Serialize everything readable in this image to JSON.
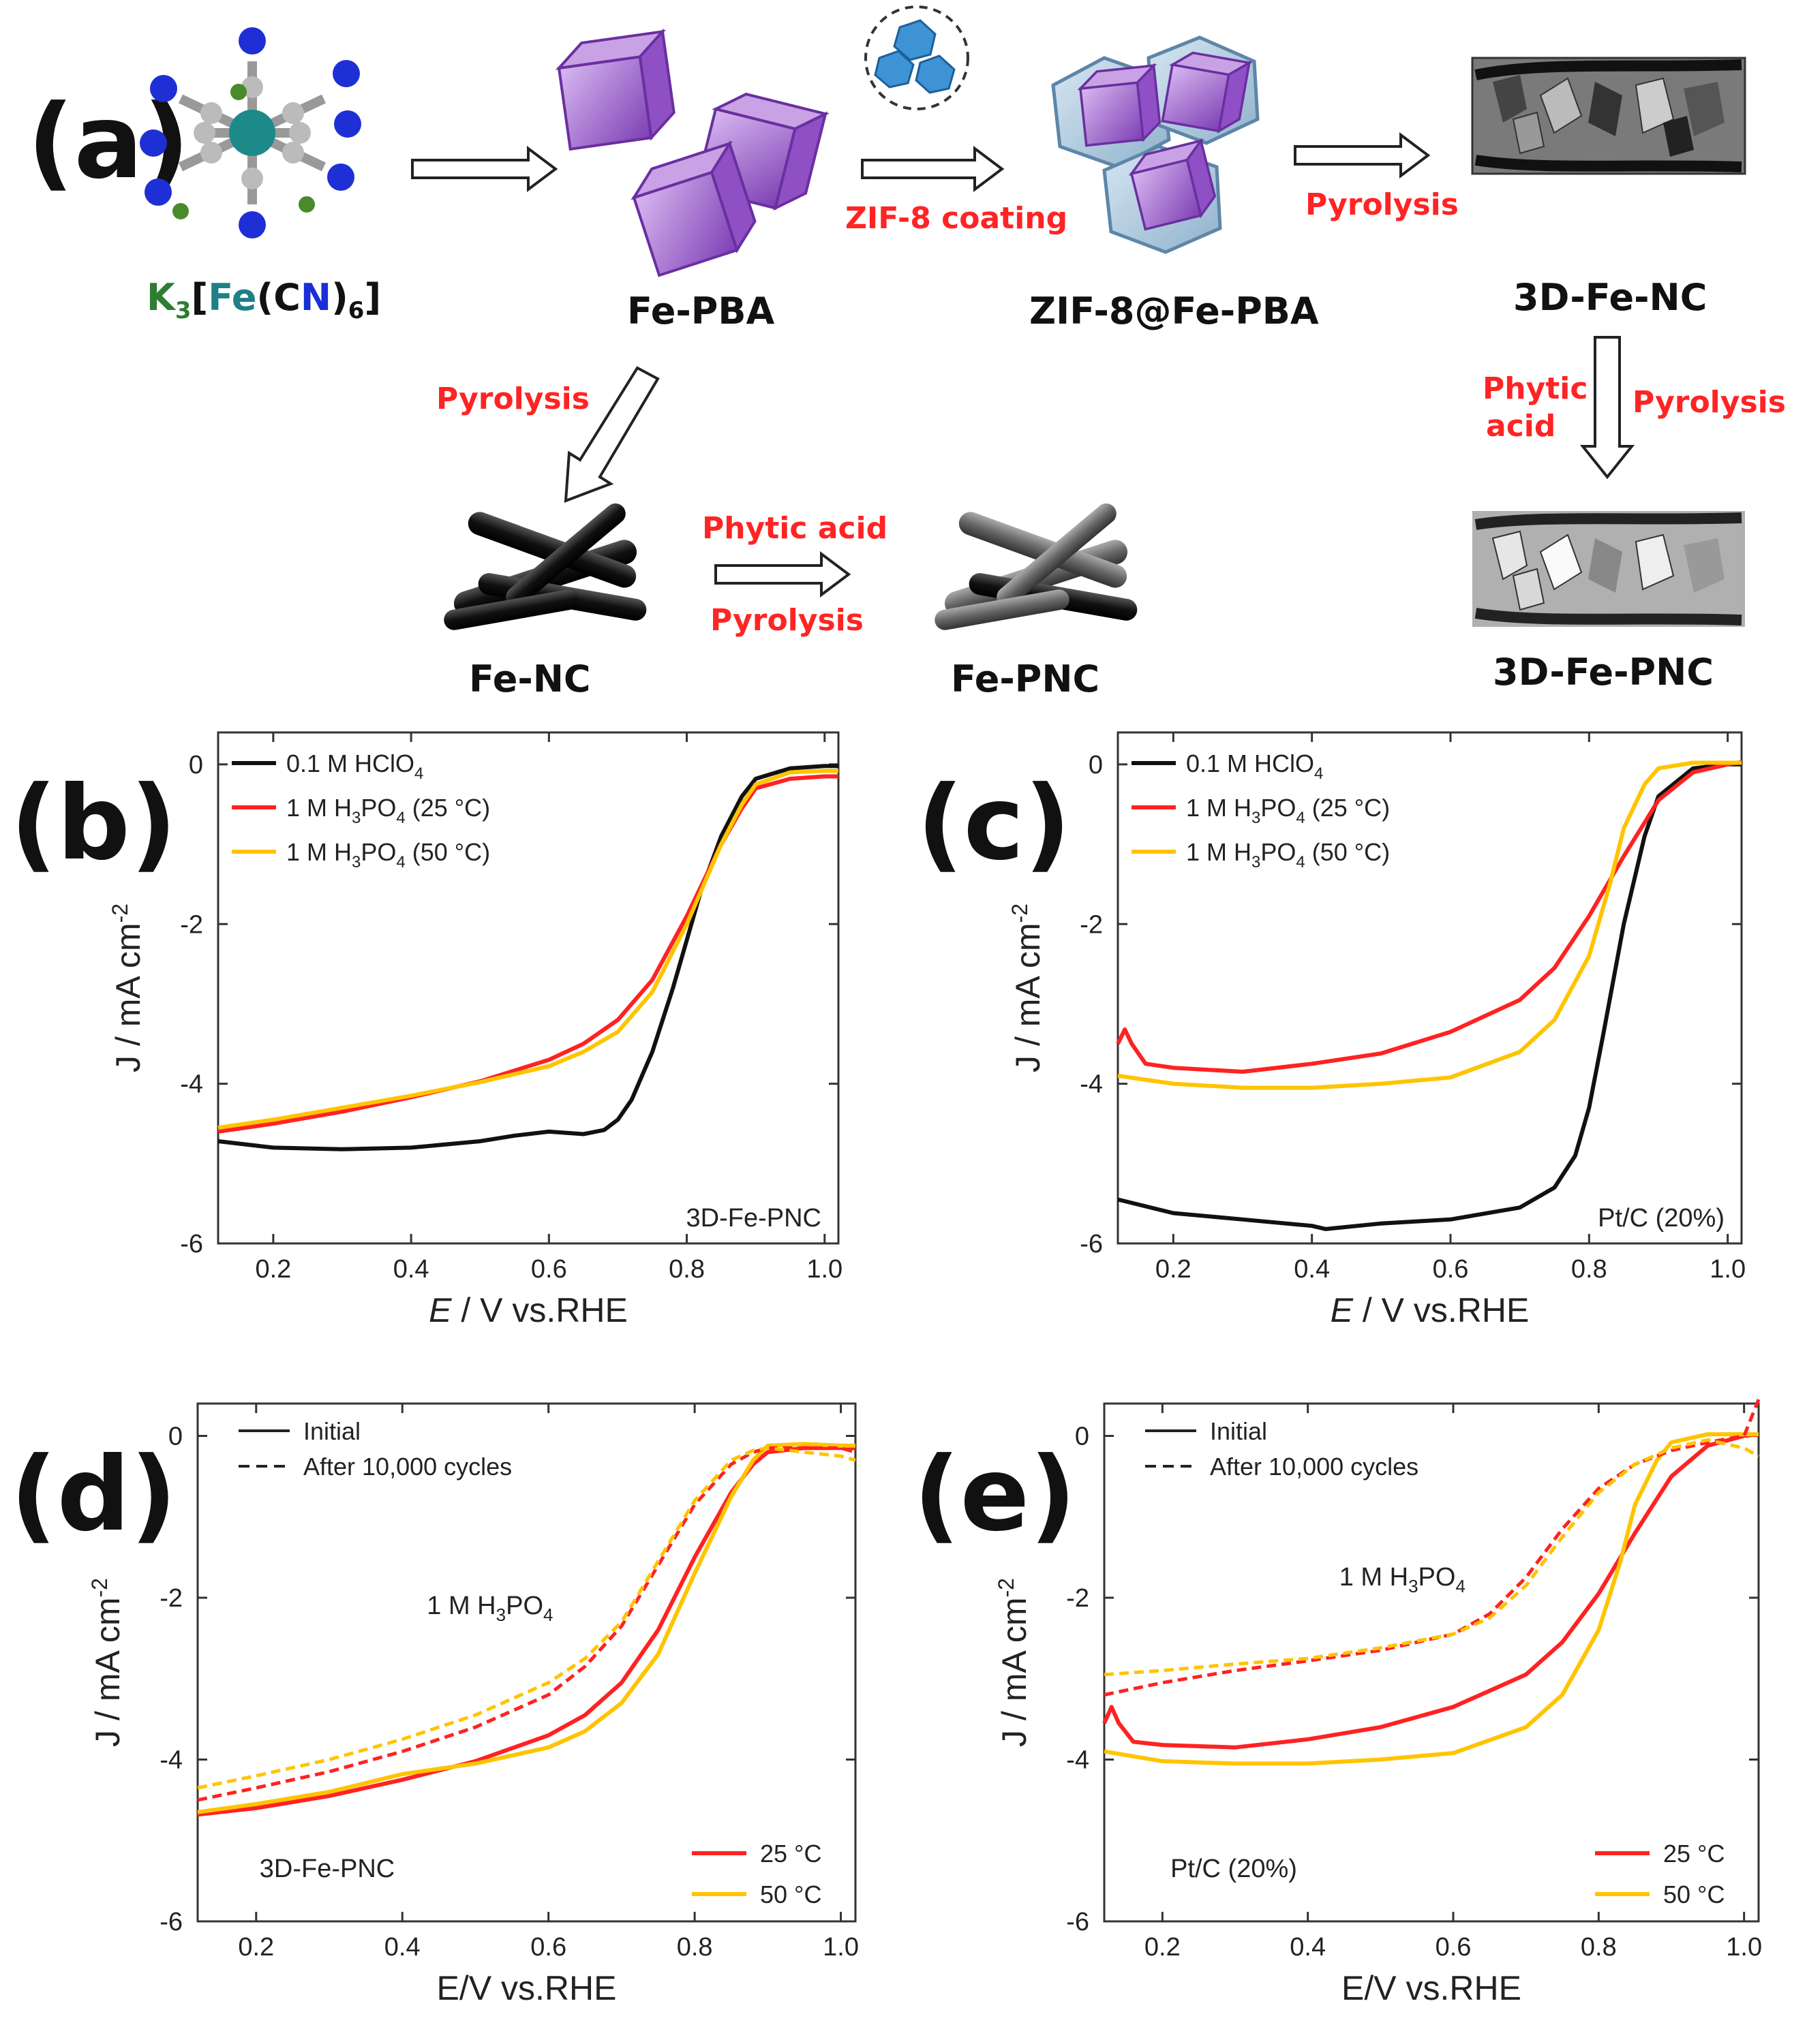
{
  "scheme": {
    "letter": "(a)",
    "nodes": {
      "precursor": {
        "prefix": "K",
        "sub": "3",
        "bracket": "[",
        "fe": "Fe",
        "paren_open": "(",
        "c": "C",
        "n": "N",
        "paren_close": ")",
        "sub2": "6",
        "bracket_close": "]"
      },
      "fe_pba": "Fe-PBA",
      "zif_pba": "ZIF-8@Fe-PBA",
      "fe3d_nc": "3D-Fe-NC",
      "fe3d_pnc": "3D-Fe-PNC",
      "fe_nc": "Fe-NC",
      "fe_pnc": "Fe-PNC"
    },
    "steps": {
      "zif_coating": "ZIF-8 coating",
      "pyrolysis_top": "Pyrolysis",
      "pyrolysis_diag": "Pyrolysis",
      "phytic_right_1": "Phytic",
      "phytic_right_2": "acid",
      "pyrolysis_right": "Pyrolysis",
      "phytic_bottom": "Phytic acid",
      "pyrolysis_bottom": "Pyrolysis"
    },
    "colors": {
      "step_label": "#ff2424",
      "k": "#2e7d32",
      "fe": "#1e7f86",
      "n": "#1a2fd6"
    }
  },
  "chart_data": [
    {
      "id": "b",
      "letter": "(b)",
      "type": "line",
      "xlabel_em": "E",
      "xlabel_rest": " / V vs.RHE",
      "ylabel": "J / mA cm",
      "ylabel_sup": "-2",
      "xlim": [
        0.12,
        1.02
      ],
      "ylim": [
        -6,
        0.4
      ],
      "xticks": [
        "0.2",
        "0.4",
        "0.6",
        "0.8",
        "1.0"
      ],
      "yticks": [
        "0",
        "-2",
        "-4",
        "-6"
      ],
      "note": "3D-Fe-PNC",
      "legend": [
        {
          "text": "0.1 M HClO",
          "sub": "4",
          "tail": ""
        },
        {
          "text": "1 M H",
          "sub": "3",
          "mid": "PO",
          "sub2": "4",
          "tail": " (25 °C)"
        },
        {
          "text": "1 M H",
          "sub": "3",
          "mid": "PO",
          "sub2": "4",
          "tail": " (50 °C)"
        }
      ],
      "series": [
        {
          "name": "0.1 M HClO4",
          "color": "#111111",
          "dash": false,
          "x": [
            0.12,
            0.2,
            0.3,
            0.4,
            0.5,
            0.55,
            0.6,
            0.65,
            0.68,
            0.7,
            0.72,
            0.75,
            0.78,
            0.8,
            0.82,
            0.85,
            0.88,
            0.9,
            0.95,
            1.0,
            1.02
          ],
          "y": [
            -4.72,
            -4.8,
            -4.82,
            -4.8,
            -4.72,
            -4.65,
            -4.6,
            -4.63,
            -4.58,
            -4.45,
            -4.2,
            -3.6,
            -2.8,
            -2.2,
            -1.6,
            -0.9,
            -0.4,
            -0.18,
            -0.05,
            -0.02,
            -0.02
          ]
        },
        {
          "name": "1 M H3PO4 (25 °C)",
          "color": "#ff2222",
          "dash": false,
          "x": [
            0.12,
            0.2,
            0.3,
            0.4,
            0.5,
            0.6,
            0.65,
            0.7,
            0.75,
            0.8,
            0.85,
            0.88,
            0.9,
            0.95,
            1.0,
            1.02
          ],
          "y": [
            -4.6,
            -4.5,
            -4.35,
            -4.17,
            -3.97,
            -3.7,
            -3.5,
            -3.2,
            -2.7,
            -1.9,
            -1.0,
            -0.55,
            -0.3,
            -0.18,
            -0.15,
            -0.15
          ]
        },
        {
          "name": "1 M H3PO4 (50 °C)",
          "color": "#ffc400",
          "dash": false,
          "x": [
            0.12,
            0.2,
            0.3,
            0.4,
            0.5,
            0.6,
            0.65,
            0.7,
            0.75,
            0.8,
            0.85,
            0.88,
            0.9,
            0.95,
            1.0,
            1.02
          ],
          "y": [
            -4.55,
            -4.45,
            -4.3,
            -4.15,
            -3.98,
            -3.78,
            -3.6,
            -3.35,
            -2.85,
            -2.0,
            -1.0,
            -0.5,
            -0.25,
            -0.1,
            -0.08,
            -0.08
          ]
        }
      ]
    },
    {
      "id": "c",
      "letter": "(c)",
      "type": "line",
      "xlabel_em": "E",
      "xlabel_rest": " / V vs.RHE",
      "ylabel": "J / mA cm",
      "ylabel_sup": "-2",
      "xlim": [
        0.12,
        1.02
      ],
      "ylim": [
        -6,
        0.4
      ],
      "xticks": [
        "0.2",
        "0.4",
        "0.6",
        "0.8",
        "1.0"
      ],
      "yticks": [
        "0",
        "-2",
        "-4",
        "-6"
      ],
      "note": "Pt/C (20%)",
      "legend": [
        {
          "text": "0.1 M HClO",
          "sub": "4",
          "tail": ""
        },
        {
          "text": "1 M H",
          "sub": "3",
          "mid": "PO",
          "sub2": "4",
          "tail": " (25 °C)"
        },
        {
          "text": "1 M H",
          "sub": "3",
          "mid": "PO",
          "sub2": "4",
          "tail": " (50 °C)"
        }
      ],
      "series": [
        {
          "name": "0.1 M HClO4",
          "color": "#111111",
          "dash": false,
          "x": [
            0.12,
            0.2,
            0.3,
            0.4,
            0.42,
            0.5,
            0.6,
            0.7,
            0.75,
            0.78,
            0.8,
            0.82,
            0.85,
            0.88,
            0.9,
            0.95,
            1.0,
            1.02
          ],
          "y": [
            -5.45,
            -5.62,
            -5.7,
            -5.78,
            -5.82,
            -5.75,
            -5.7,
            -5.55,
            -5.3,
            -4.9,
            -4.3,
            -3.4,
            -2.0,
            -0.9,
            -0.4,
            -0.05,
            0.0,
            0.0
          ]
        },
        {
          "name": "1 M H3PO4 (25 °C)",
          "color": "#ff2222",
          "dash": false,
          "x": [
            0.12,
            0.13,
            0.14,
            0.16,
            0.2,
            0.3,
            0.4,
            0.5,
            0.6,
            0.7,
            0.75,
            0.8,
            0.85,
            0.9,
            0.95,
            1.0,
            1.02
          ],
          "y": [
            -3.5,
            -3.32,
            -3.5,
            -3.75,
            -3.8,
            -3.85,
            -3.75,
            -3.62,
            -3.35,
            -2.95,
            -2.55,
            -1.9,
            -1.15,
            -0.45,
            -0.1,
            0.0,
            0.03
          ]
        },
        {
          "name": "1 M H3PO4 (50 °C)",
          "color": "#ffc400",
          "dash": false,
          "x": [
            0.12,
            0.2,
            0.3,
            0.4,
            0.5,
            0.6,
            0.7,
            0.75,
            0.8,
            0.83,
            0.85,
            0.88,
            0.9,
            0.95,
            1.0,
            1.02
          ],
          "y": [
            -3.9,
            -4.0,
            -4.05,
            -4.05,
            -4.0,
            -3.92,
            -3.6,
            -3.2,
            -2.4,
            -1.5,
            -0.8,
            -0.25,
            -0.05,
            0.02,
            0.02,
            0.02
          ]
        }
      ]
    },
    {
      "id": "d",
      "letter": "(d)",
      "type": "line",
      "xlabel_em": "",
      "xlabel_rest": "E/V vs.RHE",
      "ylabel": "J / mA cm",
      "ylabel_sup": "-2",
      "xlim": [
        0.12,
        1.02
      ],
      "ylim": [
        -6,
        0.4
      ],
      "xticks": [
        "0.2",
        "0.4",
        "0.6",
        "0.8",
        "1.0"
      ],
      "yticks": [
        "0",
        "-2",
        "-4",
        "-6"
      ],
      "note": "3D-Fe-PNC",
      "center_label": {
        "text": "1 M H",
        "sub": "3",
        "mid": "PO",
        "sub2": "4",
        "x": 0.52,
        "y": -2.2
      },
      "legend": [
        {
          "text": "Initial",
          "style": "solid"
        },
        {
          "text": "After 10,000 cycles",
          "style": "dash"
        }
      ],
      "temp_legend": [
        {
          "text": "25 °C",
          "color": "#ff2222"
        },
        {
          "text": "50 °C",
          "color": "#ffc400"
        }
      ],
      "series": [
        {
          "name": "25 °C initial",
          "color": "#ff2222",
          "dash": false,
          "x": [
            0.12,
            0.2,
            0.3,
            0.4,
            0.5,
            0.6,
            0.65,
            0.7,
            0.75,
            0.8,
            0.85,
            0.88,
            0.9,
            0.95,
            1.0,
            1.02
          ],
          "y": [
            -4.68,
            -4.6,
            -4.45,
            -4.25,
            -4.02,
            -3.7,
            -3.45,
            -3.05,
            -2.4,
            -1.5,
            -0.7,
            -0.35,
            -0.2,
            -0.15,
            -0.15,
            -0.15
          ]
        },
        {
          "name": "50 °C initial",
          "color": "#ffc400",
          "dash": false,
          "x": [
            0.12,
            0.2,
            0.3,
            0.4,
            0.5,
            0.6,
            0.65,
            0.7,
            0.75,
            0.8,
            0.85,
            0.88,
            0.9,
            0.95,
            1.0,
            1.02
          ],
          "y": [
            -4.65,
            -4.55,
            -4.4,
            -4.18,
            -4.05,
            -3.85,
            -3.65,
            -3.3,
            -2.7,
            -1.7,
            -0.75,
            -0.3,
            -0.12,
            -0.1,
            -0.12,
            -0.12
          ]
        },
        {
          "name": "25 °C after",
          "color": "#ff2222",
          "dash": true,
          "x": [
            0.12,
            0.2,
            0.3,
            0.4,
            0.5,
            0.6,
            0.65,
            0.7,
            0.75,
            0.8,
            0.85,
            0.88,
            0.9,
            0.95,
            1.0,
            1.02
          ],
          "y": [
            -4.5,
            -4.35,
            -4.15,
            -3.9,
            -3.6,
            -3.2,
            -2.85,
            -2.35,
            -1.6,
            -0.85,
            -0.35,
            -0.2,
            -0.15,
            -0.15,
            -0.15,
            -0.2
          ]
        },
        {
          "name": "50 °C after",
          "color": "#ffc400",
          "dash": true,
          "x": [
            0.12,
            0.2,
            0.3,
            0.4,
            0.5,
            0.6,
            0.65,
            0.7,
            0.75,
            0.8,
            0.85,
            0.88,
            0.9,
            0.95,
            1.0,
            1.02
          ],
          "y": [
            -4.35,
            -4.2,
            -4.0,
            -3.75,
            -3.45,
            -3.05,
            -2.75,
            -2.3,
            -1.55,
            -0.8,
            -0.3,
            -0.18,
            -0.15,
            -0.2,
            -0.25,
            -0.3
          ]
        }
      ]
    },
    {
      "id": "e",
      "letter": "(e)",
      "type": "line",
      "xlabel_em": "",
      "xlabel_rest": "E/V vs.RHE",
      "ylabel": "J / mA cm",
      "ylabel_sup": "-2",
      "xlim": [
        0.12,
        1.02
      ],
      "ylim": [
        -6,
        0.4
      ],
      "xticks": [
        "0.2",
        "0.4",
        "0.6",
        "0.8",
        "1.0"
      ],
      "yticks": [
        "0",
        "-2",
        "-4",
        "-6"
      ],
      "note": "Pt/C (20%)",
      "center_label": {
        "text": "1 M H",
        "sub": "3",
        "mid": "PO",
        "sub2": "4",
        "x": 0.53,
        "y": -1.85
      },
      "legend": [
        {
          "text": "Initial",
          "style": "solid"
        },
        {
          "text": "After 10,000 cycles",
          "style": "dash"
        }
      ],
      "temp_legend": [
        {
          "text": "25 °C",
          "color": "#ff2222"
        },
        {
          "text": "50 °C",
          "color": "#ffc400"
        }
      ],
      "series": [
        {
          "name": "25 °C initial",
          "color": "#ff2222",
          "dash": false,
          "x": [
            0.12,
            0.13,
            0.14,
            0.16,
            0.2,
            0.3,
            0.4,
            0.5,
            0.6,
            0.7,
            0.75,
            0.8,
            0.85,
            0.9,
            0.95,
            1.0,
            1.02
          ],
          "y": [
            -3.55,
            -3.35,
            -3.55,
            -3.78,
            -3.82,
            -3.85,
            -3.75,
            -3.6,
            -3.35,
            -2.95,
            -2.55,
            -1.95,
            -1.2,
            -0.5,
            -0.12,
            0.0,
            0.02
          ]
        },
        {
          "name": "50 °C initial",
          "color": "#ffc400",
          "dash": false,
          "x": [
            0.12,
            0.2,
            0.3,
            0.4,
            0.5,
            0.6,
            0.7,
            0.75,
            0.8,
            0.83,
            0.85,
            0.88,
            0.9,
            0.95,
            1.0,
            1.02
          ],
          "y": [
            -3.9,
            -4.02,
            -4.05,
            -4.05,
            -4.0,
            -3.92,
            -3.6,
            -3.2,
            -2.4,
            -1.55,
            -0.85,
            -0.3,
            -0.08,
            0.02,
            0.02,
            0.02
          ]
        },
        {
          "name": "25 °C after",
          "color": "#ff2222",
          "dash": true,
          "x": [
            0.12,
            0.2,
            0.3,
            0.4,
            0.5,
            0.6,
            0.65,
            0.7,
            0.75,
            0.8,
            0.85,
            0.9,
            0.95,
            1.0,
            1.02
          ],
          "y": [
            -3.2,
            -3.05,
            -2.9,
            -2.78,
            -2.65,
            -2.45,
            -2.2,
            -1.75,
            -1.15,
            -0.65,
            -0.35,
            -0.18,
            -0.08,
            0.0,
            0.45
          ]
        },
        {
          "name": "50 °C after",
          "color": "#ffc400",
          "dash": true,
          "x": [
            0.12,
            0.2,
            0.3,
            0.4,
            0.5,
            0.6,
            0.65,
            0.7,
            0.75,
            0.8,
            0.85,
            0.9,
            0.95,
            1.0,
            1.02
          ],
          "y": [
            -2.95,
            -2.9,
            -2.82,
            -2.75,
            -2.62,
            -2.45,
            -2.25,
            -1.85,
            -1.25,
            -0.7,
            -0.35,
            -0.15,
            -0.05,
            -0.15,
            -0.25
          ]
        }
      ]
    }
  ]
}
